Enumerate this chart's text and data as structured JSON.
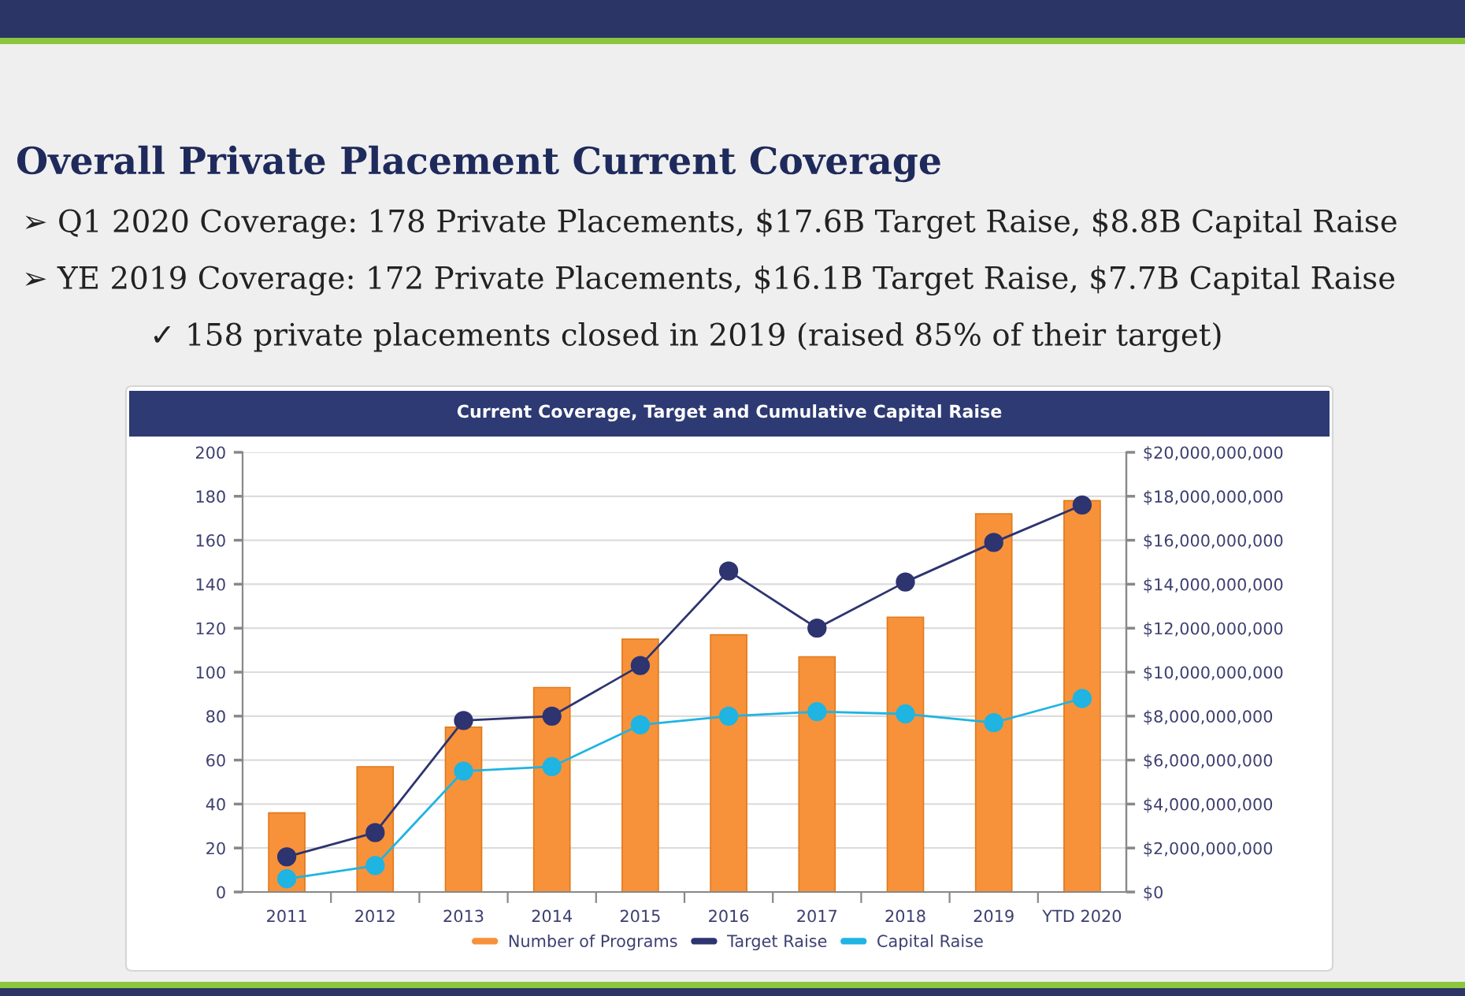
{
  "chart_data": {
    "type": "bar",
    "title": "Overall Private Placement Current Coverage",
    "subtitle": "Current Coverage, Target and Cumulative Capital Raise",
    "annotations": [
      "➢ Q1 2020 Coverage: 178 Private Placements, $17.6B Target Raise, $8.8B Capital Raise",
      "➢ YE 2019 Coverage: 172 Private Placements, $16.1B Target Raise, $7.7B Capital Raise",
      "✓ 158 private placements closed in 2019 (raised 85% of their target)"
    ],
    "categories": [
      "2011",
      "2012",
      "2013",
      "2014",
      "2015",
      "2016",
      "2017",
      "2018",
      "2019",
      "YTD 2020"
    ],
    "series": [
      {
        "name": "Number of Programs",
        "color": "#f7923a",
        "values": [
          36,
          57,
          75,
          93,
          115,
          117,
          107,
          125,
          172,
          178
        ]
      },
      {
        "name": "Target Raise",
        "type": "line",
        "axis": "y2",
        "color": "#2e3470",
        "values": [
          1600000000,
          2700000000,
          7800000000,
          8000000000,
          10300000000,
          14600000000,
          12000000000,
          14100000000,
          15900000000,
          17600000000
        ]
      },
      {
        "name": "Capital Raise",
        "type": "line",
        "axis": "y2",
        "color": "#1fb4e2",
        "values": [
          600000000,
          1200000000,
          5500000000,
          5700000000,
          7600000000,
          8000000000,
          8200000000,
          8100000000,
          7700000000,
          8800000000
        ]
      }
    ],
    "ylim": [
      0,
      200
    ],
    "yticks": [
      0,
      20,
      40,
      60,
      80,
      100,
      120,
      140,
      160,
      180,
      200
    ],
    "y2lim": [
      0,
      20000000000
    ],
    "y2ticks": [
      {
        "value": 0,
        "label": "$0"
      },
      {
        "value": 2000000000,
        "label": "$2,000,000,000"
      },
      {
        "value": 4000000000,
        "label": "$4,000,000,000"
      },
      {
        "value": 6000000000,
        "label": "$6,000,000,000"
      },
      {
        "value": 8000000000,
        "label": "$8,000,000,000"
      },
      {
        "value": 10000000000,
        "label": "$10,000,000,000"
      },
      {
        "value": 12000000000,
        "label": "$12,000,000,000"
      },
      {
        "value": 14000000000,
        "label": "$14,000,000,000"
      },
      {
        "value": 16000000000,
        "label": "$16,000,000,000"
      },
      {
        "value": 18000000000,
        "label": "$18,000,000,000"
      },
      {
        "value": 20000000000,
        "label": "$20,000,000,000"
      }
    ],
    "grid": "y",
    "legend": "bottom",
    "marker": "circle"
  }
}
